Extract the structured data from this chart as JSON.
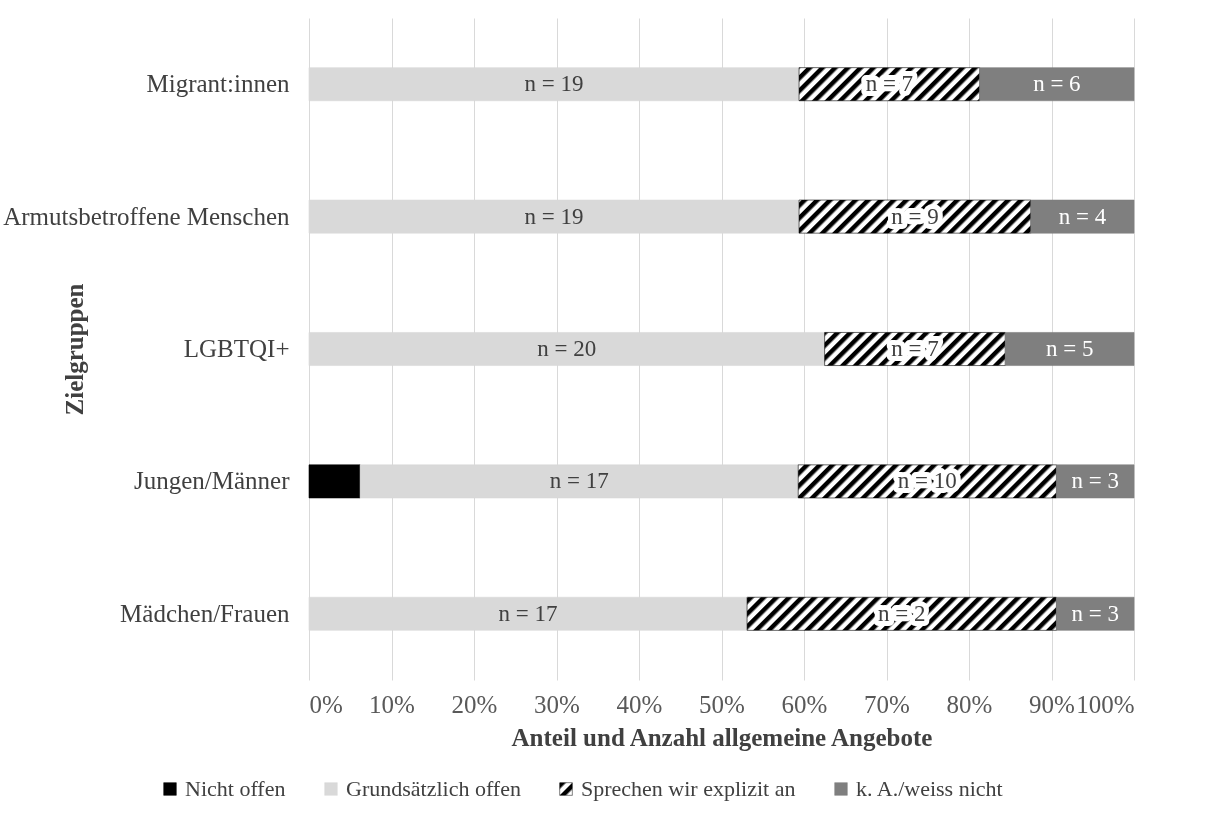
{
  "chart_data": {
    "type": "bar",
    "orientation": "horizontal",
    "stacked": true,
    "xlabel": "Anteil und Anzahl allgemeine Angebote",
    "ylabel": "Zielgruppen",
    "categories": [
      "Migrant:innen",
      "Armutsbetroffene Menschen",
      "LGBTQI+",
      "Jungen/Männer",
      "Mädchen/Frauen"
    ],
    "series": [
      {
        "name": "Nicht offen",
        "color": "#000000",
        "values": [
          null,
          null,
          null,
          6.2,
          null
        ]
      },
      {
        "name": "Grundsätzlich offen",
        "color": "#d9d9d9",
        "values": [
          59.4,
          59.4,
          62.5,
          53.1,
          53.1
        ]
      },
      {
        "name": "Sprechen wir explizit an",
        "color": "#000000",
        "values": [
          21.9,
          28.1,
          21.9,
          31.3,
          37.5
        ]
      },
      {
        "name": "k. A./weiss nicht",
        "color": "#7f7f7f",
        "values": [
          18.7,
          12.5,
          15.6,
          9.4,
          9.4
        ]
      }
    ],
    "annotations": [
      "n = 19",
      "n = 7",
      "n = 6",
      "n = 19",
      "n = 9",
      "n = 4",
      "n = 20",
      "n = 7",
      "n = 5",
      "n = 17",
      "n = 10",
      "n = 3",
      "n = 17",
      "n = 2",
      "n = 3"
    ],
    "xlim": [
      0,
      100
    ],
    "xticks": [
      {
        "value": 0,
        "label": "0%"
      },
      {
        "value": 10,
        "label": "10%"
      },
      {
        "value": 20,
        "label": "20%"
      },
      {
        "value": 30,
        "label": "30%"
      },
      {
        "value": 40,
        "label": "40%"
      },
      {
        "value": 50,
        "label": "50%"
      },
      {
        "value": 60,
        "label": "60%"
      },
      {
        "value": 70,
        "label": "70%"
      },
      {
        "value": 80,
        "label": "80%"
      },
      {
        "value": 90,
        "label": "90%"
      },
      {
        "value": 100,
        "label": "100%"
      }
    ],
    "grid": "x",
    "legend": "bottom"
  }
}
